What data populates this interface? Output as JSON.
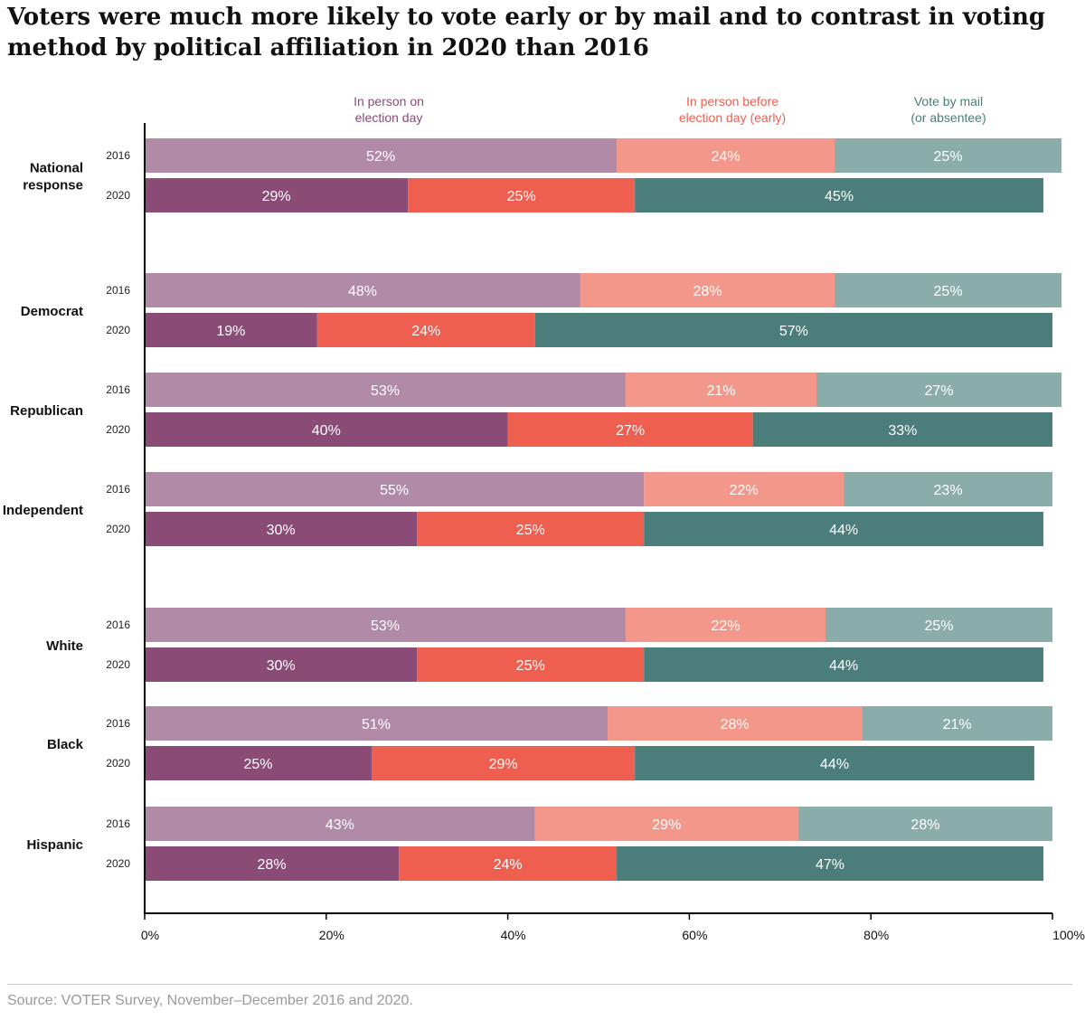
{
  "title": "Voters were much more likely to vote early or by mail and to contrast in voting method by political affiliation in 2020 than 2016",
  "source": "Source: VOTER Survey, November–December 2016 and 2020.",
  "chart_data": {
    "type": "bar",
    "orientation": "horizontal",
    "stacked": true,
    "title": "Voters were much more likely to vote early or by mail and to contrast in voting method by political affiliation in 2020 than 2016",
    "xlim": [
      0,
      100
    ],
    "x_ticks": [
      "0%",
      "20%",
      "40%",
      "60%",
      "80%",
      "100%"
    ],
    "grid": false,
    "legend_placement": "top",
    "series": [
      {
        "name": "In person on election day",
        "legend_lines": [
          "In person on",
          "election day"
        ],
        "color_2016": "#b08aa6",
        "color_2020": "#8a4b77",
        "label_color": "#8a4b77"
      },
      {
        "name": "In person before election day (early)",
        "legend_lines": [
          "In person before",
          "election day (early)"
        ],
        "color_2016": "#f2978a",
        "color_2020": "#ee5f4f",
        "label_color": "#ee5f4f"
      },
      {
        "name": "Vote by mail (or absentee)",
        "legend_lines": [
          "Vote by mail",
          "(or absentee)"
        ],
        "color_2016": "#8badaa",
        "color_2020": "#4b7e7b",
        "label_color": "#4b7e7b"
      }
    ],
    "groups": [
      {
        "label": "National response",
        "label_lines": [
          "National",
          "response"
        ],
        "rows": [
          {
            "year": "2016",
            "values": [
              52,
              24,
              25
            ]
          },
          {
            "year": "2020",
            "values": [
              29,
              25,
              45
            ]
          }
        ]
      },
      {
        "label": "Democrat",
        "label_lines": [
          "Democrat"
        ],
        "rows": [
          {
            "year": "2016",
            "values": [
              48,
              28,
              25
            ]
          },
          {
            "year": "2020",
            "values": [
              19,
              24,
              57
            ]
          }
        ]
      },
      {
        "label": "Republican",
        "label_lines": [
          "Republican"
        ],
        "rows": [
          {
            "year": "2016",
            "values": [
              53,
              21,
              27
            ]
          },
          {
            "year": "2020",
            "values": [
              40,
              27,
              33
            ]
          }
        ]
      },
      {
        "label": "Independent",
        "label_lines": [
          "Independent"
        ],
        "rows": [
          {
            "year": "2016",
            "values": [
              55,
              22,
              23
            ]
          },
          {
            "year": "2020",
            "values": [
              30,
              25,
              44
            ]
          }
        ]
      },
      {
        "label": "White",
        "label_lines": [
          "White"
        ],
        "rows": [
          {
            "year": "2016",
            "values": [
              53,
              22,
              25
            ]
          },
          {
            "year": "2020",
            "values": [
              30,
              25,
              44
            ]
          }
        ]
      },
      {
        "label": "Black",
        "label_lines": [
          "Black"
        ],
        "rows": [
          {
            "year": "2016",
            "values": [
              51,
              28,
              21
            ]
          },
          {
            "year": "2020",
            "values": [
              25,
              29,
              44
            ]
          }
        ]
      },
      {
        "label": "Hispanic",
        "label_lines": [
          "Hispanic"
        ],
        "rows": [
          {
            "year": "2016",
            "values": [
              43,
              29,
              28
            ]
          },
          {
            "year": "2020",
            "values": [
              28,
              24,
              47
            ]
          }
        ]
      }
    ]
  }
}
